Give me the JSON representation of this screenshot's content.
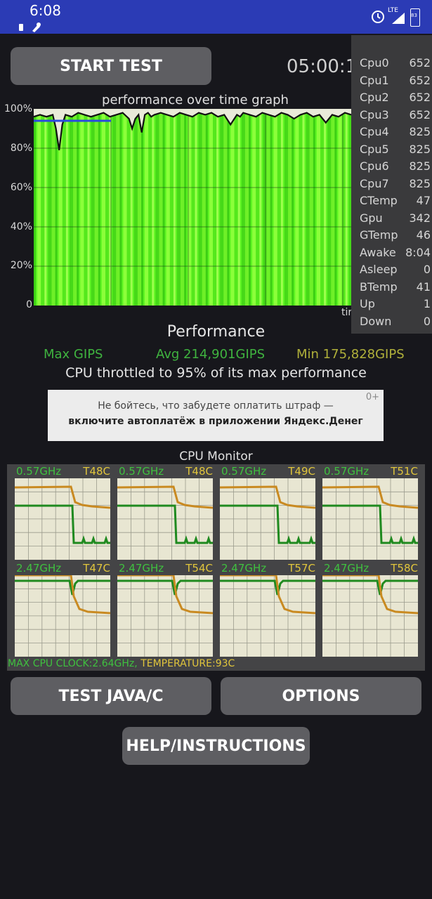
{
  "status_bar": {
    "time": "6:08",
    "network": "LTE",
    "battery": "83"
  },
  "buttons": {
    "start_test": "START TEST",
    "test_java_c": "TEST JAVA/C",
    "options": "OPTIONS",
    "help": "HELP/INSTRUCTIONS"
  },
  "timer": "05:00:1",
  "graph": {
    "title": "performance over time graph",
    "y_ticks": [
      "100%",
      "80%",
      "60%",
      "40%",
      "20%",
      "0"
    ],
    "x_label": "tir"
  },
  "chart_data": {
    "type": "area",
    "title": "performance over time graph",
    "xlabel": "tir",
    "ylabel": "",
    "ylim": [
      0,
      100
    ],
    "x": [
      0,
      2,
      4,
      6,
      7,
      8,
      9,
      10,
      12,
      14,
      16,
      18,
      20,
      22,
      24,
      26,
      28,
      30,
      31,
      32,
      33,
      34,
      35,
      36,
      37,
      38,
      40,
      42,
      44,
      46,
      48,
      50,
      52,
      54,
      56,
      58,
      60,
      62,
      64,
      65,
      66,
      68,
      70,
      72,
      74,
      76,
      78,
      80,
      82,
      84,
      86,
      88,
      90,
      92,
      94,
      96,
      98,
      100
    ],
    "series": [
      {
        "values": [
          96,
          97,
          96,
          97,
          90,
          79,
          92,
          97,
          96,
          98,
          97,
          96,
          97,
          98,
          96,
          97,
          98,
          95,
          90,
          95,
          97,
          88,
          97,
          98,
          96,
          97,
          98,
          97,
          96,
          98,
          97,
          96,
          98,
          97,
          98,
          96,
          97,
          92,
          97,
          96,
          98,
          97,
          96,
          98,
          97,
          96,
          98,
          97,
          95,
          97,
          98,
          96,
          97,
          93,
          97,
          96,
          98,
          97
        ]
      }
    ],
    "grid": true
  },
  "overlay": [
    {
      "label": "Cpu0",
      "value": "652"
    },
    {
      "label": "Cpu1",
      "value": "652"
    },
    {
      "label": "Cpu2",
      "value": "652"
    },
    {
      "label": "Cpu3",
      "value": "652"
    },
    {
      "label": "Cpu4",
      "value": "825"
    },
    {
      "label": "Cpu5",
      "value": "825"
    },
    {
      "label": "Cpu6",
      "value": "825"
    },
    {
      "label": "Cpu7",
      "value": "825"
    },
    {
      "label": "CTemp",
      "value": "47"
    },
    {
      "label": "Gpu",
      "value": "342"
    },
    {
      "label": "GTemp",
      "value": "46"
    },
    {
      "label": "Awake",
      "value": "8:04"
    },
    {
      "label": "Asleep",
      "value": "0"
    },
    {
      "label": "BTemp",
      "value": "41"
    },
    {
      "label": "Up",
      "value": "1"
    },
    {
      "label": "Down",
      "value": "0"
    }
  ],
  "performance": {
    "title": "Performance",
    "max": "Max GIPS",
    "avg": "Avg 214,901GIPS",
    "min": "Min 175,828GIPS",
    "throttle": "CPU throttled to 95% of its max performance",
    "colors": {
      "max": "#3fb33f",
      "avg": "#3fb33f",
      "min": "#b0b03a"
    }
  },
  "ad": {
    "badge": "0+",
    "line1": "Не бойтесь, что забудете оплатить штраф —",
    "line2": "включите автоплатёж в приложении Яндекс.Денег"
  },
  "cpu_monitor": {
    "title": "CPU Monitor",
    "cores": [
      {
        "freq": "0.57GHz",
        "temp": "T48C"
      },
      {
        "freq": "0.57GHz",
        "temp": "T48C"
      },
      {
        "freq": "0.57GHz",
        "temp": "T49C"
      },
      {
        "freq": "0.57GHz",
        "temp": "T51C"
      },
      {
        "freq": "2.47GHz",
        "temp": "T47C"
      },
      {
        "freq": "2.47GHz",
        "temp": "T54C"
      },
      {
        "freq": "2.47GHz",
        "temp": "T57C"
      },
      {
        "freq": "2.47GHz",
        "temp": "T58C"
      }
    ],
    "max_clock": "MAX CPU CLOCK:2.64GHz,",
    "temperature": "TEMPERATURE:93C"
  }
}
